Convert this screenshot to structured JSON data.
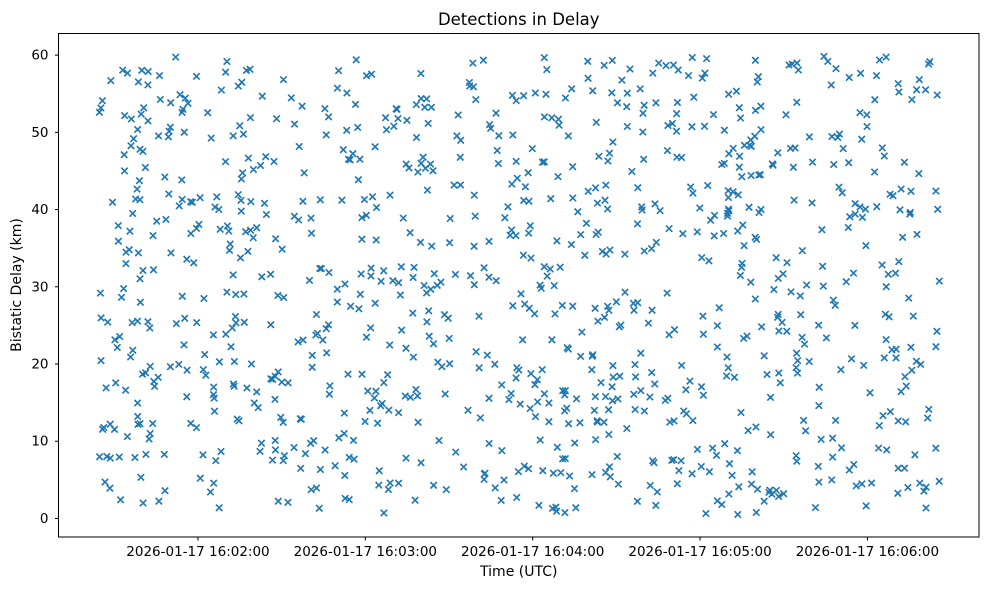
{
  "figure": {
    "background_color": "#ffffff",
    "spine_color": "#000000",
    "tick_color": "#000000",
    "text_color": "#000000"
  },
  "chart_data": {
    "type": "scatter",
    "title": "Detections in Delay",
    "xlabel": "Time (UTC)",
    "ylabel": "Bistatic Delay (km)",
    "legend": null,
    "grid": false,
    "marker": "x",
    "marker_color": "#1f77b4",
    "marker_size_px": 6.4,
    "marker_stroke_px": 1.6,
    "n_points": 1000,
    "distribution": "uniform-random",
    "seed": 20260117,
    "x_date": "2026-01-17",
    "x_data_start": "2026-01-17 16:01:25",
    "x_data_end": "2026-01-17 16:06:25",
    "x_data_range_seconds": [
      84,
      386
    ],
    "xlim_seconds": [
      70,
      400
    ],
    "x_ticks": [
      {
        "label": "2026-01-17 16:02:00",
        "s": 120
      },
      {
        "label": "2026-01-17 16:03:00",
        "s": 180
      },
      {
        "label": "2026-01-17 16:04:00",
        "s": 240
      },
      {
        "label": "2026-01-17 16:05:00",
        "s": 300
      },
      {
        "label": "2026-01-17 16:06:00",
        "s": 360
      }
    ],
    "y_data_range": [
      0.5,
      59.9
    ],
    "ylim": [
      -2.4,
      62.8
    ],
    "y_ticks": [
      {
        "label": "0",
        "v": 0
      },
      {
        "label": "10",
        "v": 10
      },
      {
        "label": "20",
        "v": 20
      },
      {
        "label": "30",
        "v": 30
      },
      {
        "label": "40",
        "v": 40
      },
      {
        "label": "50",
        "v": 50
      },
      {
        "label": "60",
        "v": 60
      }
    ]
  }
}
